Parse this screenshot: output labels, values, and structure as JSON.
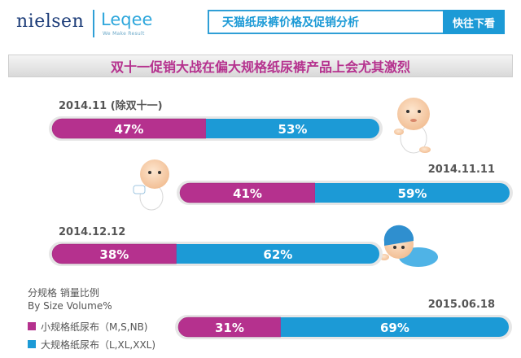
{
  "header": {
    "logo_nielsen": "nielsen",
    "logo_leqee": "Leqee",
    "logo_leqee_sub": "We Make Result",
    "title": "天猫纸尿裤价格及促销分析",
    "cta_label": "快往下看"
  },
  "banner_title": "双十一促销大战在偏大规格纸尿裤产品上会尤其激烈",
  "colors": {
    "small": "#b5318e",
    "large": "#1c9ad6"
  },
  "legend": {
    "title": "分规格 销量比例",
    "subtitle": "By Size Volume%",
    "items": [
      {
        "label": "小规格纸尿布（M,S,NB)",
        "color": "#b5318e"
      },
      {
        "label": "大规格纸尿布（L,XL,XXL)",
        "color": "#1c9ad6"
      }
    ]
  },
  "chart_data": {
    "type": "bar",
    "orientation": "horizontal-stacked-100",
    "title": "双十一促销大战在偏大规格纸尿裤产品上会尤其激烈",
    "categories": [
      "2014.11 (除双十一)",
      "2014.11.11",
      "2014.12.12",
      "2015.06.18"
    ],
    "series": [
      {
        "name": "小规格纸尿布（M,S,NB)",
        "values": [
          47,
          41,
          38,
          31
        ],
        "labels": [
          "47%",
          "41%",
          "38%",
          "31%"
        ]
      },
      {
        "name": "大规格纸尿布（L,XL,XXL)",
        "values": [
          53,
          59,
          62,
          69
        ],
        "labels": [
          "53%",
          "59%",
          "62%",
          "69%"
        ]
      }
    ],
    "xlim": [
      0,
      100
    ],
    "legend_position": "bottom-left"
  }
}
